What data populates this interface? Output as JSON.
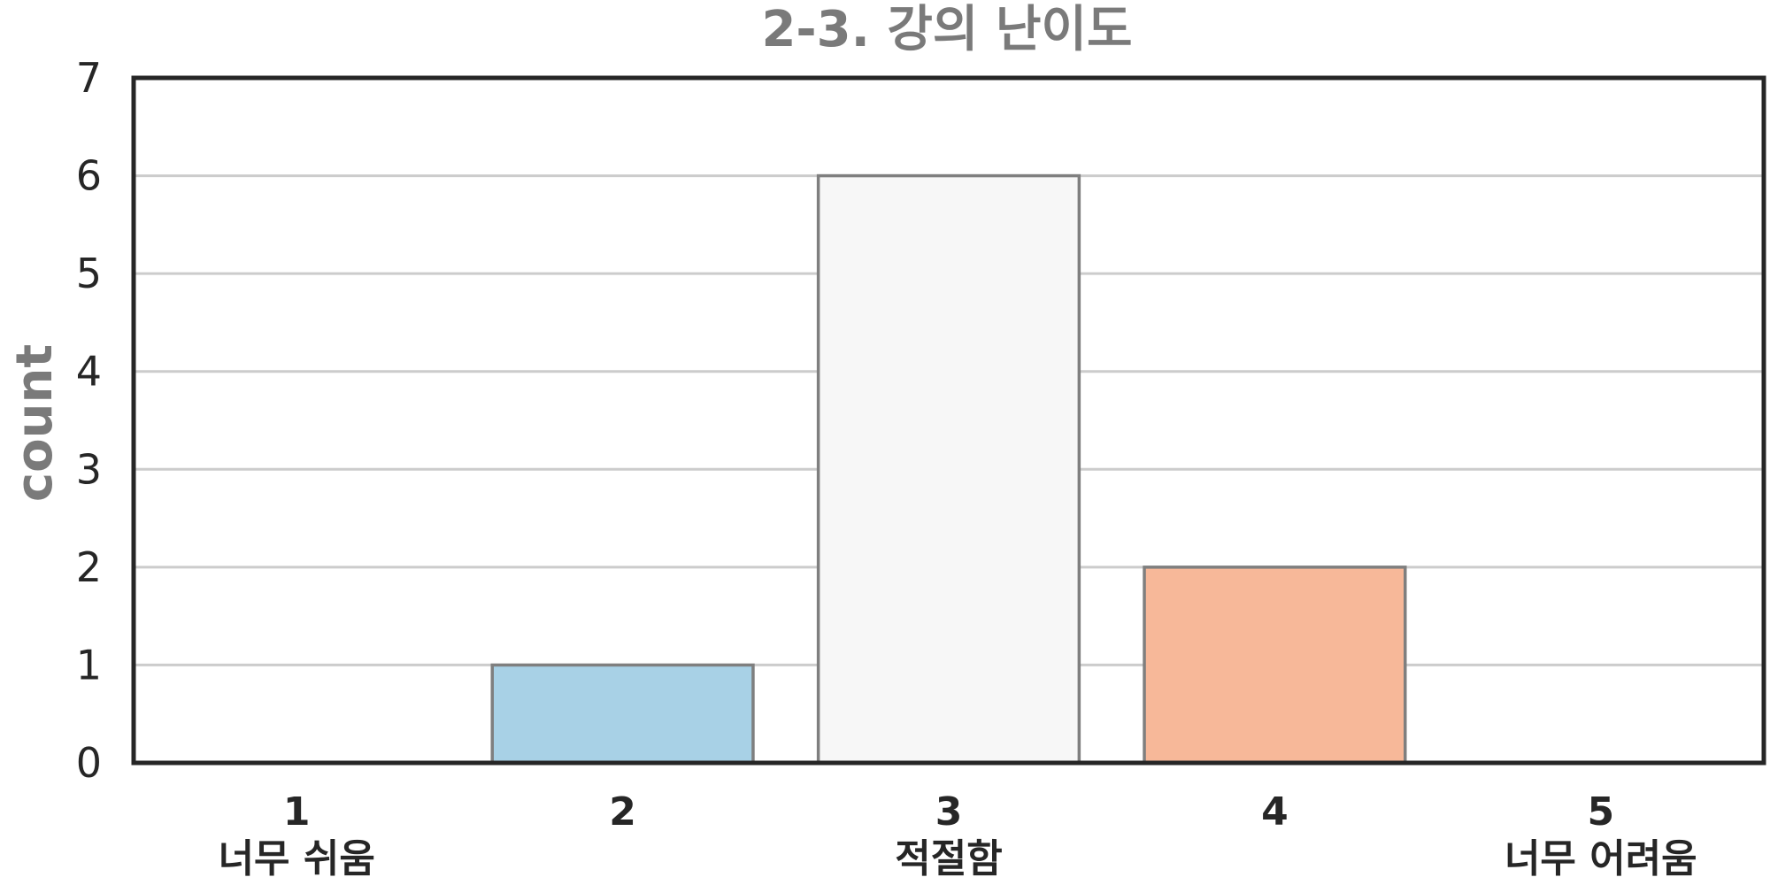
{
  "chart_data": {
    "type": "bar",
    "title": "2-3. 강의 난이도",
    "xlabel": "",
    "ylabel": "count",
    "ylim": [
      0,
      7
    ],
    "yticks": [
      "0",
      "1",
      "2",
      "3",
      "4",
      "5",
      "6",
      "7"
    ],
    "grid": true,
    "legend": "none",
    "categories": [
      {
        "number": "1",
        "label": "너무 쉬움"
      },
      {
        "number": "2",
        "label": ""
      },
      {
        "number": "3",
        "label": "적절함"
      },
      {
        "number": "4",
        "label": ""
      },
      {
        "number": "5",
        "label": "너무 어려움"
      }
    ],
    "values": [
      0,
      1,
      6,
      2,
      0
    ],
    "colors": [
      "#5b9bd5",
      "#a8d1e6",
      "#f7f7f7",
      "#f7b899",
      "#e8735a"
    ],
    "bar_edge_color": "#7f7f7f",
    "frame_color": "#262626",
    "grid_color": "#cccccc"
  }
}
